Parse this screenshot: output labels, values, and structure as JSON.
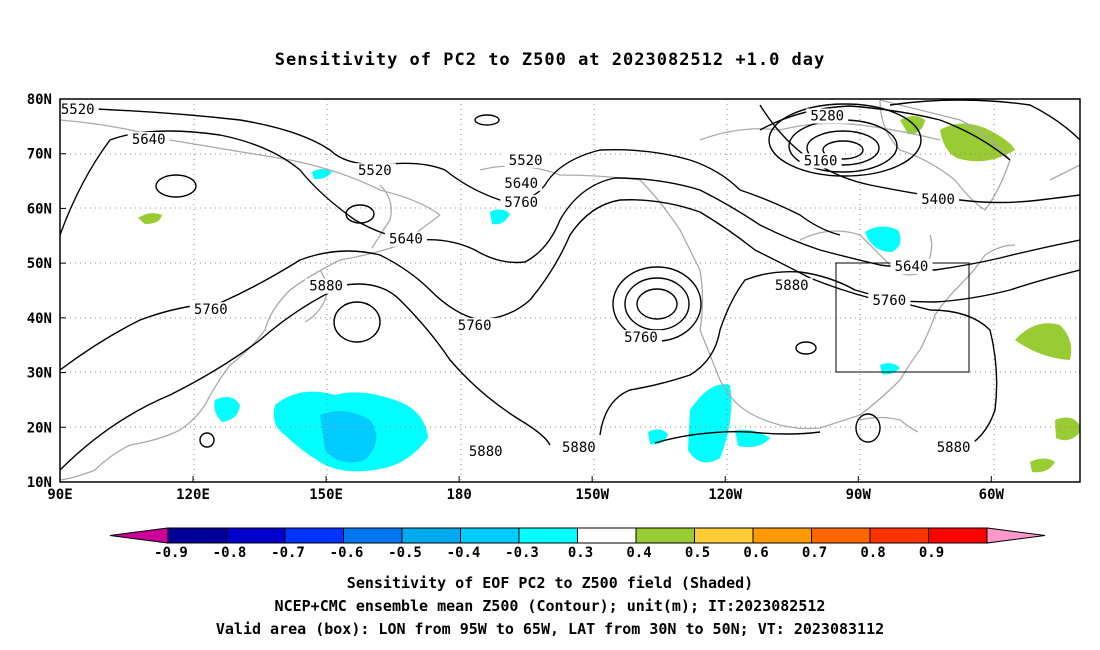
{
  "title": "Sensitivity of PC2 to Z500 at 2023082512 +1.0 day",
  "map": {
    "lat_labels": [
      "80N",
      "70N",
      "60N",
      "50N",
      "40N",
      "30N",
      "20N",
      "10N"
    ],
    "lon_labels": [
      "90E",
      "120E",
      "150E",
      "180",
      "150W",
      "120W",
      "90W",
      "60W"
    ],
    "contour_labels": [
      {
        "text": "5520",
        "lon": 94,
        "lat": 78
      },
      {
        "text": "5640",
        "lon": 110,
        "lat": 72.5
      },
      {
        "text": "5520",
        "lon": 161,
        "lat": 66.8
      },
      {
        "text": "5520",
        "lon": -165,
        "lat": 68.7
      },
      {
        "text": "5640",
        "lon": -166,
        "lat": 64.5
      },
      {
        "text": "5760",
        "lon": -166,
        "lat": 61
      },
      {
        "text": "5280",
        "lon": -97,
        "lat": 76.8
      },
      {
        "text": "5160",
        "lon": -98.5,
        "lat": 68.6
      },
      {
        "text": "5400",
        "lon": -72,
        "lat": 61.5
      },
      {
        "text": "5640",
        "lon": 168,
        "lat": 54.3
      },
      {
        "text": "5880",
        "lon": 150,
        "lat": 45.7
      },
      {
        "text": "5760",
        "lon": 124,
        "lat": 41.4
      },
      {
        "text": "5760",
        "lon": -176.5,
        "lat": 38.5
      },
      {
        "text": "5760",
        "lon": -139,
        "lat": 36.3
      },
      {
        "text": "5880",
        "lon": -105,
        "lat": 45.8
      },
      {
        "text": "5640",
        "lon": -78,
        "lat": 49.3
      },
      {
        "text": "5760",
        "lon": -83,
        "lat": 43.1
      },
      {
        "text": "5880",
        "lon": -174,
        "lat": 15.5
      },
      {
        "text": "5880",
        "lon": -153,
        "lat": 16.2
      },
      {
        "text": "5880",
        "lon": -68.5,
        "lat": 16.2
      }
    ],
    "valid_box": {
      "lon_min": -95,
      "lon_max": -65,
      "lat_min": 30,
      "lat_max": 50
    },
    "colors": {
      "contour": "#000000",
      "coast": "#aaaaaa",
      "grid": "#888888",
      "pos_03_04": "#99cc33",
      "neg_04_03": "#00ffff",
      "neg_05_04": "#00ccff"
    }
  },
  "colorbar": {
    "ticks": [
      "-0.9",
      "-0.8",
      "-0.7",
      "-0.6",
      "-0.5",
      "-0.4",
      "-0.3",
      "0.3",
      "0.4",
      "0.5",
      "0.6",
      "0.7",
      "0.8",
      "0.9"
    ],
    "colors": [
      "#cc0099",
      "#000099",
      "#0000cc",
      "#0033ff",
      "#0077ee",
      "#00aaee",
      "#00ccff",
      "#00ffff",
      "#ffffff",
      "#99cc33",
      "#ffcc33",
      "#ff9900",
      "#ff6600",
      "#ff3300",
      "#ff0000",
      "#ff99cc"
    ]
  },
  "captions": [
    "Sensitivity of EOF PC2 to Z500 field (Shaded)",
    "NCEP+CMC ensemble mean Z500 (Contour); unit(m); IT:2023082512",
    "Valid area (box): LON from 95W to 65W, LAT from 30N to 50N; VT: 2023083112"
  ]
}
